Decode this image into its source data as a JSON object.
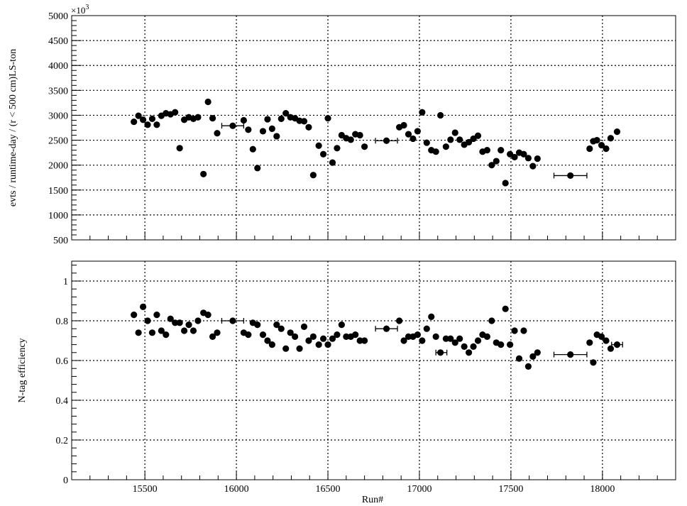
{
  "chart_data": [
    {
      "type": "scatter",
      "panel": "top",
      "ylabel": "evts / runtime-day / (r < 500 cm)LS-ton",
      "y_exponent_label": "×10³",
      "xlim": [
        15100,
        18400
      ],
      "ylim": [
        500,
        5000
      ],
      "grid": true,
      "yticks": [
        "500",
        "1000",
        "1500",
        "2000",
        "2500",
        "3000",
        "3500",
        "4000",
        "4500",
        "5000"
      ],
      "xticks_values": [
        15500,
        16000,
        16500,
        17000,
        17500,
        18000
      ],
      "series": [
        {
          "points": [
            [
              15440,
              2870
            ],
            [
              15465,
              2990
            ],
            [
              15490,
              2910
            ],
            [
              15515,
              2810
            ],
            [
              15540,
              2930
            ],
            [
              15565,
              2810
            ],
            [
              15590,
              2990
            ],
            [
              15615,
              3040
            ],
            [
              15640,
              3020
            ],
            [
              15665,
              3060
            ],
            [
              15690,
              2340
            ],
            [
              15715,
              2910
            ],
            [
              15740,
              2960
            ],
            [
              15765,
              2930
            ],
            [
              15790,
              2960
            ],
            [
              15820,
              1820
            ],
            [
              15845,
              3270
            ],
            [
              15870,
              2940
            ],
            [
              15895,
              2640
            ],
            [
              15980,
              2790
            ],
            [
              16040,
              2900
            ],
            [
              16065,
              2710
            ],
            [
              16090,
              2320
            ],
            [
              16115,
              1940
            ],
            [
              16145,
              2680
            ],
            [
              16170,
              2920
            ],
            [
              16195,
              2730
            ],
            [
              16220,
              2580
            ],
            [
              16245,
              2930
            ],
            [
              16270,
              3040
            ],
            [
              16295,
              2960
            ],
            [
              16320,
              2940
            ],
            [
              16345,
              2890
            ],
            [
              16370,
              2880
            ],
            [
              16395,
              2760
            ],
            [
              16420,
              1800
            ],
            [
              16450,
              2390
            ],
            [
              16475,
              2220
            ],
            [
              16500,
              2940
            ],
            [
              16525,
              2050
            ],
            [
              16550,
              2340
            ],
            [
              16575,
              2600
            ],
            [
              16600,
              2540
            ],
            [
              16625,
              2510
            ],
            [
              16650,
              2620
            ],
            [
              16675,
              2600
            ],
            [
              16700,
              2370
            ],
            [
              16820,
              2490
            ],
            [
              16890,
              2760
            ],
            [
              16915,
              2800
            ],
            [
              16940,
              2620
            ],
            [
              16965,
              2530
            ],
            [
              16990,
              2680
            ],
            [
              17015,
              3060
            ],
            [
              17040,
              2450
            ],
            [
              17065,
              2300
            ],
            [
              17090,
              2270
            ],
            [
              17115,
              3000
            ],
            [
              17145,
              2370
            ],
            [
              17170,
              2510
            ],
            [
              17195,
              2650
            ],
            [
              17220,
              2510
            ],
            [
              17245,
              2410
            ],
            [
              17270,
              2460
            ],
            [
              17295,
              2530
            ],
            [
              17320,
              2590
            ],
            [
              17345,
              2270
            ],
            [
              17370,
              2300
            ],
            [
              17395,
              2000
            ],
            [
              17420,
              2080
            ],
            [
              17445,
              2300
            ],
            [
              17470,
              1640
            ],
            [
              17495,
              2220
            ],
            [
              17520,
              2160
            ],
            [
              17545,
              2250
            ],
            [
              17570,
              2220
            ],
            [
              17595,
              2140
            ],
            [
              17620,
              1980
            ],
            [
              17645,
              2130
            ],
            [
              17825,
              1790
            ],
            [
              17930,
              2330
            ],
            [
              17950,
              2480
            ],
            [
              17970,
              2500
            ],
            [
              17995,
              2400
            ],
            [
              18020,
              2330
            ],
            [
              18045,
              2540
            ],
            [
              18080,
              2670
            ]
          ],
          "x_error_points": [
            [
              15980,
              2790,
              60
            ],
            [
              16820,
              2490,
              60
            ],
            [
              17825,
              1790,
              90
            ]
          ]
        }
      ]
    },
    {
      "type": "scatter",
      "panel": "bottom",
      "xlabel": "Run#",
      "ylabel": "N-tag efficiency",
      "xlim": [
        15100,
        18400
      ],
      "ylim": [
        0,
        1.1
      ],
      "grid": true,
      "yticks": [
        "0",
        "0.2",
        "0.4",
        "0.6",
        "0.8",
        "1"
      ],
      "xticks": [
        "15500",
        "16000",
        "16500",
        "17000",
        "17500",
        "18000"
      ],
      "series": [
        {
          "points": [
            [
              15440,
              0.83
            ],
            [
              15465,
              0.74
            ],
            [
              15490,
              0.87
            ],
            [
              15515,
              0.8
            ],
            [
              15540,
              0.74
            ],
            [
              15565,
              0.83
            ],
            [
              15590,
              0.75
            ],
            [
              15615,
              0.73
            ],
            [
              15640,
              0.81
            ],
            [
              15665,
              0.79
            ],
            [
              15690,
              0.79
            ],
            [
              15715,
              0.75
            ],
            [
              15740,
              0.78
            ],
            [
              15765,
              0.75
            ],
            [
              15790,
              0.8
            ],
            [
              15820,
              0.84
            ],
            [
              15845,
              0.83
            ],
            [
              15870,
              0.72
            ],
            [
              15895,
              0.74
            ],
            [
              15980,
              0.8
            ],
            [
              16040,
              0.74
            ],
            [
              16065,
              0.73
            ],
            [
              16090,
              0.79
            ],
            [
              16115,
              0.78
            ],
            [
              16145,
              0.73
            ],
            [
              16170,
              0.7
            ],
            [
              16195,
              0.68
            ],
            [
              16220,
              0.78
            ],
            [
              16245,
              0.76
            ],
            [
              16270,
              0.66
            ],
            [
              16295,
              0.74
            ],
            [
              16320,
              0.72
            ],
            [
              16345,
              0.66
            ],
            [
              16370,
              0.77
            ],
            [
              16395,
              0.7
            ],
            [
              16420,
              0.72
            ],
            [
              16450,
              0.68
            ],
            [
              16475,
              0.71
            ],
            [
              16500,
              0.68
            ],
            [
              16525,
              0.71
            ],
            [
              16550,
              0.73
            ],
            [
              16575,
              0.78
            ],
            [
              16600,
              0.72
            ],
            [
              16625,
              0.72
            ],
            [
              16650,
              0.73
            ],
            [
              16675,
              0.7
            ],
            [
              16700,
              0.7
            ],
            [
              16820,
              0.76
            ],
            [
              16890,
              0.8
            ],
            [
              16915,
              0.7
            ],
            [
              16940,
              0.72
            ],
            [
              16965,
              0.72
            ],
            [
              16990,
              0.73
            ],
            [
              17015,
              0.7
            ],
            [
              17040,
              0.76
            ],
            [
              17065,
              0.82
            ],
            [
              17090,
              0.72
            ],
            [
              17115,
              0.64
            ],
            [
              17145,
              0.71
            ],
            [
              17170,
              0.71
            ],
            [
              17195,
              0.69
            ],
            [
              17220,
              0.71
            ],
            [
              17245,
              0.67
            ],
            [
              17270,
              0.64
            ],
            [
              17295,
              0.67
            ],
            [
              17320,
              0.7
            ],
            [
              17345,
              0.73
            ],
            [
              17370,
              0.72
            ],
            [
              17395,
              0.8
            ],
            [
              17420,
              0.69
            ],
            [
              17445,
              0.68
            ],
            [
              17470,
              0.86
            ],
            [
              17495,
              0.68
            ],
            [
              17520,
              0.75
            ],
            [
              17545,
              0.61
            ],
            [
              17570,
              0.75
            ],
            [
              17595,
              0.57
            ],
            [
              17620,
              0.62
            ],
            [
              17645,
              0.64
            ],
            [
              17825,
              0.63
            ],
            [
              17930,
              0.69
            ],
            [
              17950,
              0.59
            ],
            [
              17970,
              0.73
            ],
            [
              17995,
              0.72
            ],
            [
              18020,
              0.7
            ],
            [
              18045,
              0.66
            ],
            [
              18080,
              0.68
            ]
          ],
          "x_error_points": [
            [
              15980,
              0.8,
              60
            ],
            [
              16820,
              0.76,
              60
            ],
            [
              17120,
              0.64,
              30
            ],
            [
              17825,
              0.63,
              90
            ],
            [
              18080,
              0.68,
              30
            ]
          ]
        }
      ]
    }
  ]
}
